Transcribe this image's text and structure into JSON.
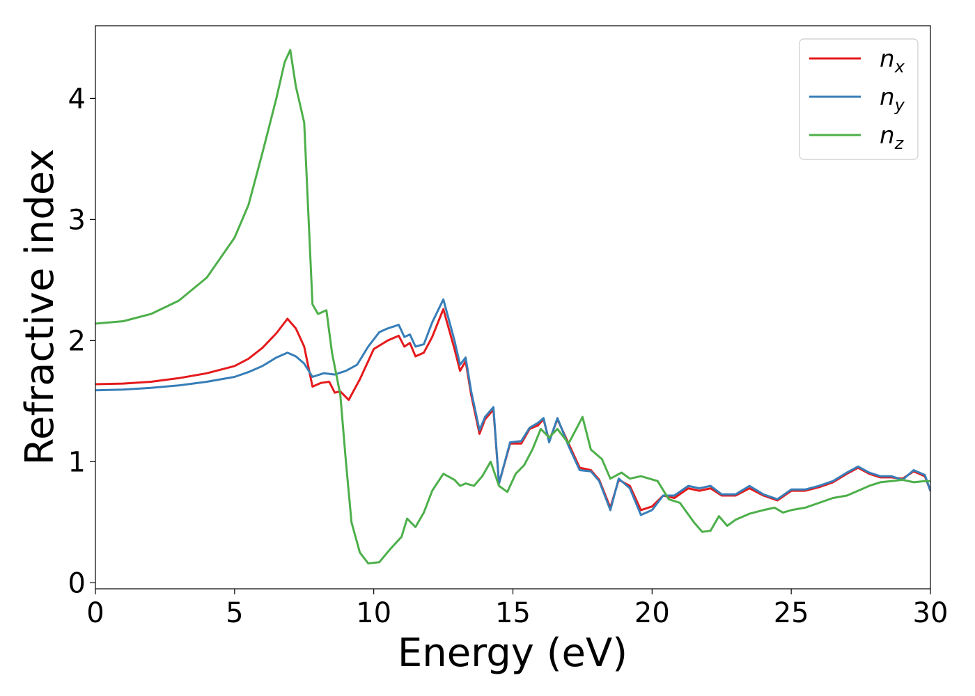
{
  "chart_data": {
    "type": "line",
    "xlabel": "Energy (eV)",
    "ylabel": "Refractive index",
    "xlim": [
      0,
      30
    ],
    "ylim": [
      -0.05,
      4.6
    ],
    "xticks": [
      0,
      5,
      10,
      15,
      20,
      25,
      30
    ],
    "yticks": [
      0,
      1,
      2,
      3,
      4
    ],
    "grid": false,
    "legend_position": "top-right",
    "series": [
      {
        "name": "n",
        "subscript": "x",
        "color": "#e41a1c",
        "points": [
          [
            0,
            1.64
          ],
          [
            1,
            1.645
          ],
          [
            2,
            1.66
          ],
          [
            3,
            1.69
          ],
          [
            4,
            1.73
          ],
          [
            5,
            1.79
          ],
          [
            5.5,
            1.85
          ],
          [
            6,
            1.94
          ],
          [
            6.5,
            2.06
          ],
          [
            6.9,
            2.18
          ],
          [
            7.2,
            2.1
          ],
          [
            7.5,
            1.95
          ],
          [
            7.8,
            1.62
          ],
          [
            8.1,
            1.65
          ],
          [
            8.4,
            1.66
          ],
          [
            8.6,
            1.57
          ],
          [
            8.8,
            1.58
          ],
          [
            9.1,
            1.51
          ],
          [
            9.5,
            1.68
          ],
          [
            10,
            1.93
          ],
          [
            10.5,
            2.0
          ],
          [
            10.9,
            2.04
          ],
          [
            11.1,
            1.95
          ],
          [
            11.3,
            1.98
          ],
          [
            11.5,
            1.87
          ],
          [
            11.8,
            1.9
          ],
          [
            12.1,
            2.03
          ],
          [
            12.5,
            2.26
          ],
          [
            12.9,
            1.93
          ],
          [
            13.1,
            1.75
          ],
          [
            13.3,
            1.83
          ],
          [
            13.5,
            1.55
          ],
          [
            13.8,
            1.23
          ],
          [
            14.0,
            1.35
          ],
          [
            14.3,
            1.43
          ],
          [
            14.5,
            0.82
          ],
          [
            14.9,
            1.15
          ],
          [
            15.3,
            1.15
          ],
          [
            15.6,
            1.27
          ],
          [
            15.9,
            1.3
          ],
          [
            16.1,
            1.35
          ],
          [
            16.3,
            1.17
          ],
          [
            16.6,
            1.35
          ],
          [
            17.0,
            1.15
          ],
          [
            17.4,
            0.95
          ],
          [
            17.8,
            0.93
          ],
          [
            18.1,
            0.85
          ],
          [
            18.5,
            0.62
          ],
          [
            18.8,
            0.85
          ],
          [
            19.2,
            0.8
          ],
          [
            19.6,
            0.6
          ],
          [
            20.0,
            0.63
          ],
          [
            20.4,
            0.72
          ],
          [
            20.8,
            0.7
          ],
          [
            21.3,
            0.78
          ],
          [
            21.7,
            0.76
          ],
          [
            22.1,
            0.78
          ],
          [
            22.5,
            0.72
          ],
          [
            23.0,
            0.72
          ],
          [
            23.5,
            0.78
          ],
          [
            24.0,
            0.72
          ],
          [
            24.5,
            0.68
          ],
          [
            25.0,
            0.76
          ],
          [
            25.5,
            0.76
          ],
          [
            26.0,
            0.79
          ],
          [
            26.5,
            0.83
          ],
          [
            27.0,
            0.9
          ],
          [
            27.4,
            0.95
          ],
          [
            27.8,
            0.9
          ],
          [
            28.2,
            0.87
          ],
          [
            28.6,
            0.87
          ],
          [
            29.0,
            0.86
          ],
          [
            29.4,
            0.92
          ],
          [
            29.8,
            0.88
          ],
          [
            30,
            0.76
          ]
        ]
      },
      {
        "name": "n",
        "subscript": "y",
        "color": "#377eb8",
        "points": [
          [
            0,
            1.59
          ],
          [
            1,
            1.595
          ],
          [
            2,
            1.61
          ],
          [
            3,
            1.63
          ],
          [
            4,
            1.66
          ],
          [
            5,
            1.7
          ],
          [
            5.5,
            1.74
          ],
          [
            6,
            1.79
          ],
          [
            6.5,
            1.86
          ],
          [
            6.9,
            1.9
          ],
          [
            7.2,
            1.87
          ],
          [
            7.5,
            1.81
          ],
          [
            7.8,
            1.7
          ],
          [
            8.2,
            1.73
          ],
          [
            8.6,
            1.72
          ],
          [
            9.0,
            1.75
          ],
          [
            9.4,
            1.8
          ],
          [
            9.8,
            1.95
          ],
          [
            10.2,
            2.07
          ],
          [
            10.5,
            2.1
          ],
          [
            10.9,
            2.13
          ],
          [
            11.1,
            2.03
          ],
          [
            11.3,
            2.05
          ],
          [
            11.5,
            1.95
          ],
          [
            11.8,
            1.97
          ],
          [
            12.1,
            2.15
          ],
          [
            12.5,
            2.34
          ],
          [
            12.9,
            2.0
          ],
          [
            13.1,
            1.8
          ],
          [
            13.3,
            1.86
          ],
          [
            13.5,
            1.58
          ],
          [
            13.8,
            1.26
          ],
          [
            14.0,
            1.37
          ],
          [
            14.3,
            1.45
          ],
          [
            14.5,
            0.82
          ],
          [
            14.9,
            1.16
          ],
          [
            15.3,
            1.17
          ],
          [
            15.6,
            1.28
          ],
          [
            15.9,
            1.32
          ],
          [
            16.1,
            1.36
          ],
          [
            16.3,
            1.16
          ],
          [
            16.6,
            1.36
          ],
          [
            17.0,
            1.13
          ],
          [
            17.4,
            0.93
          ],
          [
            17.8,
            0.92
          ],
          [
            18.1,
            0.84
          ],
          [
            18.5,
            0.6
          ],
          [
            18.8,
            0.86
          ],
          [
            19.2,
            0.78
          ],
          [
            19.6,
            0.56
          ],
          [
            20.0,
            0.6
          ],
          [
            20.4,
            0.72
          ],
          [
            20.8,
            0.72
          ],
          [
            21.3,
            0.8
          ],
          [
            21.7,
            0.78
          ],
          [
            22.1,
            0.8
          ],
          [
            22.5,
            0.73
          ],
          [
            23.0,
            0.73
          ],
          [
            23.5,
            0.8
          ],
          [
            24.0,
            0.73
          ],
          [
            24.5,
            0.69
          ],
          [
            25.0,
            0.77
          ],
          [
            25.5,
            0.77
          ],
          [
            26.0,
            0.8
          ],
          [
            26.5,
            0.84
          ],
          [
            27.0,
            0.91
          ],
          [
            27.4,
            0.96
          ],
          [
            27.8,
            0.91
          ],
          [
            28.2,
            0.88
          ],
          [
            28.6,
            0.88
          ],
          [
            29.0,
            0.85
          ],
          [
            29.4,
            0.93
          ],
          [
            29.8,
            0.89
          ],
          [
            30,
            0.76
          ]
        ]
      },
      {
        "name": "n",
        "subscript": "z",
        "color": "#4daf4a",
        "points": [
          [
            0,
            2.14
          ],
          [
            1,
            2.16
          ],
          [
            2,
            2.22
          ],
          [
            3,
            2.33
          ],
          [
            4,
            2.52
          ],
          [
            5,
            2.85
          ],
          [
            5.5,
            3.12
          ],
          [
            6,
            3.55
          ],
          [
            6.5,
            4.0
          ],
          [
            6.8,
            4.3
          ],
          [
            7.0,
            4.4
          ],
          [
            7.2,
            4.1
          ],
          [
            7.5,
            3.8
          ],
          [
            7.8,
            2.3
          ],
          [
            8.0,
            2.22
          ],
          [
            8.3,
            2.25
          ],
          [
            8.5,
            1.9
          ],
          [
            8.8,
            1.55
          ],
          [
            9.0,
            1.0
          ],
          [
            9.2,
            0.5
          ],
          [
            9.5,
            0.25
          ],
          [
            9.8,
            0.16
          ],
          [
            10.2,
            0.17
          ],
          [
            10.6,
            0.28
          ],
          [
            11.0,
            0.38
          ],
          [
            11.2,
            0.53
          ],
          [
            11.5,
            0.46
          ],
          [
            11.8,
            0.58
          ],
          [
            12.1,
            0.76
          ],
          [
            12.5,
            0.9
          ],
          [
            12.9,
            0.85
          ],
          [
            13.1,
            0.8
          ],
          [
            13.3,
            0.82
          ],
          [
            13.6,
            0.8
          ],
          [
            13.9,
            0.88
          ],
          [
            14.2,
            1.0
          ],
          [
            14.5,
            0.8
          ],
          [
            14.8,
            0.75
          ],
          [
            15.1,
            0.9
          ],
          [
            15.4,
            0.97
          ],
          [
            15.7,
            1.1
          ],
          [
            16.0,
            1.27
          ],
          [
            16.3,
            1.2
          ],
          [
            16.6,
            1.27
          ],
          [
            17.0,
            1.15
          ],
          [
            17.3,
            1.28
          ],
          [
            17.5,
            1.37
          ],
          [
            17.8,
            1.1
          ],
          [
            18.2,
            1.02
          ],
          [
            18.5,
            0.86
          ],
          [
            18.9,
            0.91
          ],
          [
            19.2,
            0.86
          ],
          [
            19.6,
            0.88
          ],
          [
            19.9,
            0.86
          ],
          [
            20.2,
            0.84
          ],
          [
            20.6,
            0.69
          ],
          [
            21.0,
            0.66
          ],
          [
            21.5,
            0.5
          ],
          [
            21.8,
            0.42
          ],
          [
            22.1,
            0.43
          ],
          [
            22.4,
            0.55
          ],
          [
            22.7,
            0.47
          ],
          [
            23.0,
            0.52
          ],
          [
            23.5,
            0.57
          ],
          [
            24.0,
            0.6
          ],
          [
            24.4,
            0.62
          ],
          [
            24.7,
            0.58
          ],
          [
            25.0,
            0.6
          ],
          [
            25.5,
            0.62
          ],
          [
            26.0,
            0.66
          ],
          [
            26.5,
            0.7
          ],
          [
            27.0,
            0.72
          ],
          [
            27.4,
            0.76
          ],
          [
            27.8,
            0.8
          ],
          [
            28.2,
            0.83
          ],
          [
            28.6,
            0.84
          ],
          [
            29.0,
            0.85
          ],
          [
            29.4,
            0.83
          ],
          [
            29.8,
            0.84
          ],
          [
            30,
            0.84
          ]
        ]
      }
    ]
  }
}
